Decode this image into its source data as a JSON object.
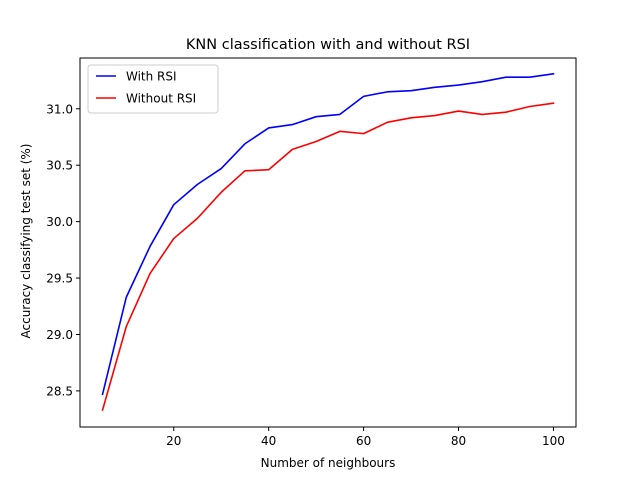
{
  "chart_data": {
    "type": "line",
    "title": "KNN classification with and without RSI",
    "xlabel": "Number of neighbours",
    "ylabel": "Accuracy classifying test set (%)",
    "xlim": [
      0.25,
      104.75
    ],
    "ylim": [
      28.18,
      31.45
    ],
    "xticks": [
      20,
      40,
      60,
      80,
      100
    ],
    "yticks": [
      28.5,
      29.0,
      29.5,
      30.0,
      30.5,
      31.0
    ],
    "ytick_labels": [
      "28.5",
      "29.0",
      "29.5",
      "30.0",
      "30.5",
      "31.0"
    ],
    "grid": false,
    "legend_position": "top-left",
    "x": [
      5,
      10,
      15,
      20,
      25,
      30,
      35,
      40,
      45,
      50,
      55,
      60,
      65,
      70,
      75,
      80,
      85,
      90,
      95,
      100
    ],
    "series": [
      {
        "name": "With RSI",
        "color": "#0000ff",
        "values": [
          28.47,
          29.33,
          29.78,
          30.15,
          30.33,
          30.47,
          30.69,
          30.83,
          30.86,
          30.93,
          30.95,
          31.11,
          31.15,
          31.16,
          31.19,
          31.21,
          31.24,
          31.28,
          31.28,
          31.31
        ]
      },
      {
        "name": "Without RSI",
        "color": "#ff0000",
        "values": [
          28.33,
          29.07,
          29.54,
          29.85,
          30.03,
          30.26,
          30.45,
          30.46,
          30.64,
          30.71,
          30.8,
          30.78,
          30.88,
          30.92,
          30.94,
          30.98,
          30.95,
          30.97,
          31.02,
          31.05
        ]
      }
    ]
  }
}
